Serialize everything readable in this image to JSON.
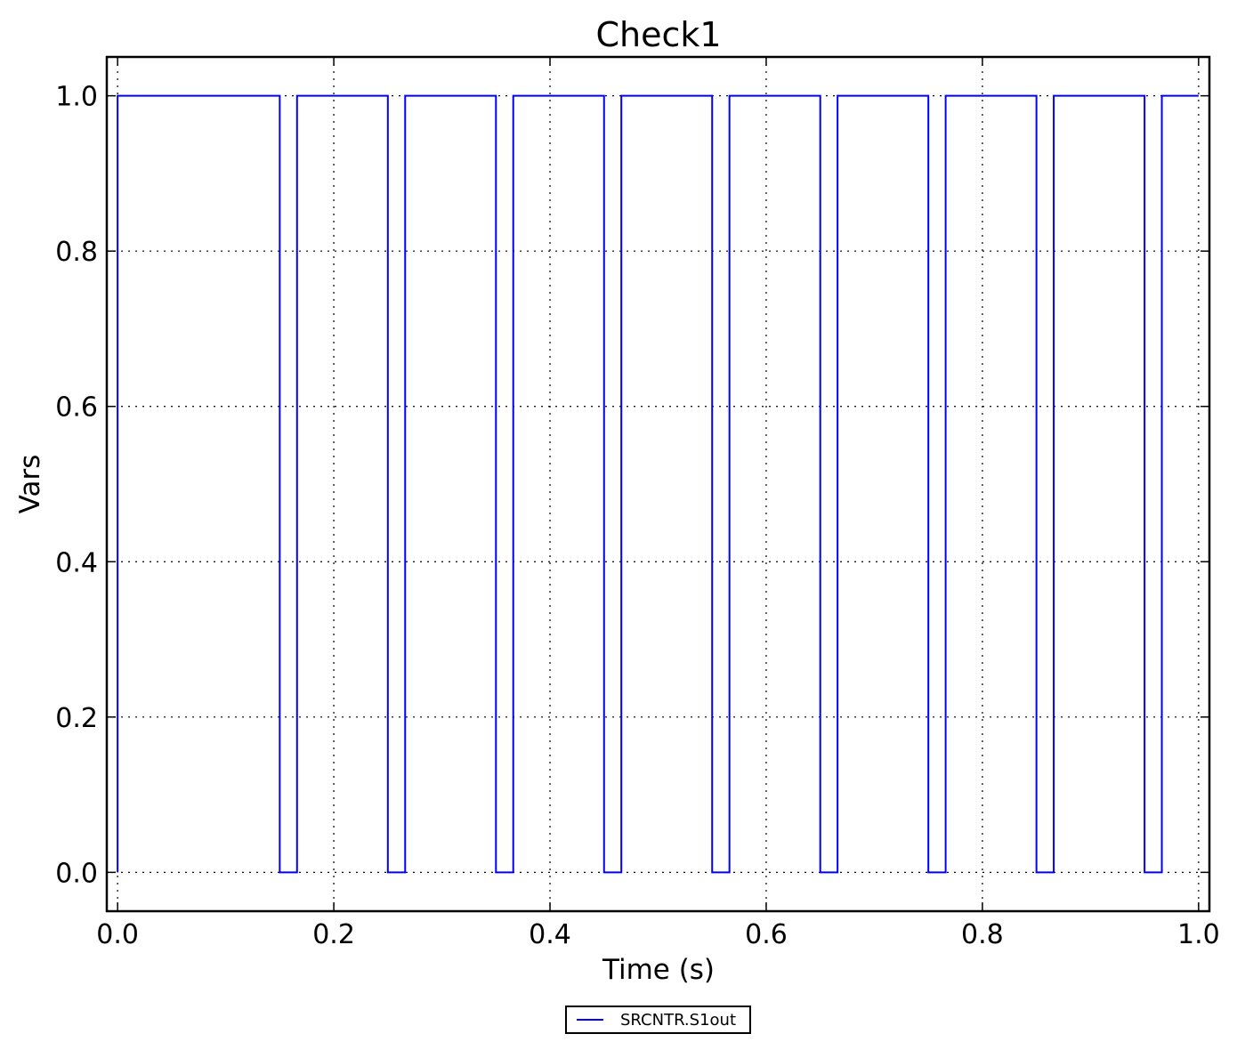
{
  "chart_data": {
    "type": "line",
    "title": "Check1",
    "x_label": "Time (s)",
    "y_label": "Vars",
    "x": [
      0,
      0,
      0.15,
      0.15,
      0.166,
      0.166,
      0.25,
      0.25,
      0.266,
      0.266,
      0.35,
      0.35,
      0.366,
      0.366,
      0.45,
      0.45,
      0.466,
      0.466,
      0.55,
      0.55,
      0.566,
      0.566,
      0.65,
      0.65,
      0.666,
      0.666,
      0.75,
      0.75,
      0.766,
      0.766,
      0.85,
      0.85,
      0.866,
      0.866,
      0.95,
      0.95,
      0.966,
      0.966,
      1.0
    ],
    "series": [
      {
        "name": "SRCNTR.S1out",
        "color": "#0000ff",
        "values": [
          0,
          1,
          1,
          0,
          0,
          1,
          1,
          0,
          0,
          1,
          1,
          0,
          0,
          1,
          1,
          0,
          0,
          1,
          1,
          0,
          0,
          1,
          1,
          0,
          0,
          1,
          1,
          0,
          0,
          1,
          1,
          0,
          0,
          1,
          1,
          0,
          0,
          1,
          1
        ]
      }
    ],
    "xlim": [
      -0.01,
      1.01
    ],
    "ylim": [
      -0.05,
      1.05
    ],
    "xticks": [
      {
        "value": 0,
        "label": "0.0"
      },
      0.2,
      0.4,
      0.6,
      0.8,
      {
        "value": 1,
        "label": "1.0"
      }
    ],
    "yticks": [
      {
        "value": 0,
        "label": "0.0"
      },
      0.2,
      0.4,
      0.6,
      0.8,
      {
        "value": 1,
        "label": "1.0"
      }
    ],
    "grid": true,
    "legend": "bottom"
  }
}
